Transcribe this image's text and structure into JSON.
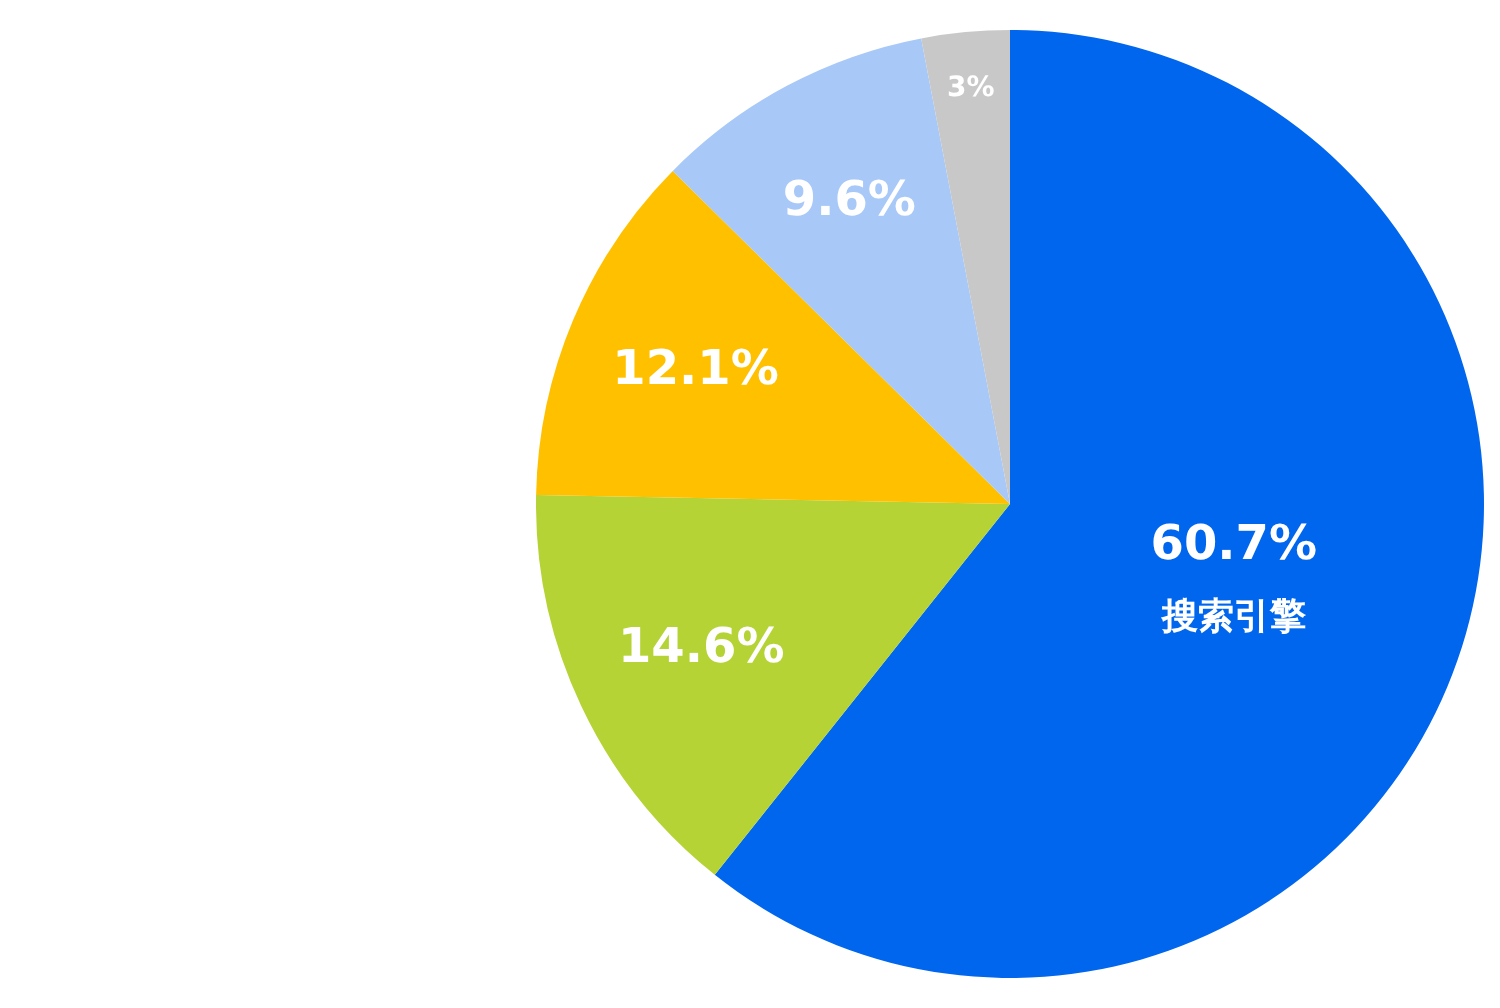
{
  "chart_data": {
    "type": "pie",
    "categories": [
      "搜索引擎",
      null,
      null,
      null,
      null
    ],
    "values": [
      60.7,
      14.6,
      12.1,
      9.6,
      3
    ],
    "colors": [
      "#0066ee",
      "#b5d334",
      "#ffc000",
      "#a8c8f8",
      "#c8c8c8"
    ],
    "value_labels": [
      "60.7%",
      "14.6%",
      "12.1%",
      "9.6%",
      "3%"
    ],
    "legend": false
  }
}
